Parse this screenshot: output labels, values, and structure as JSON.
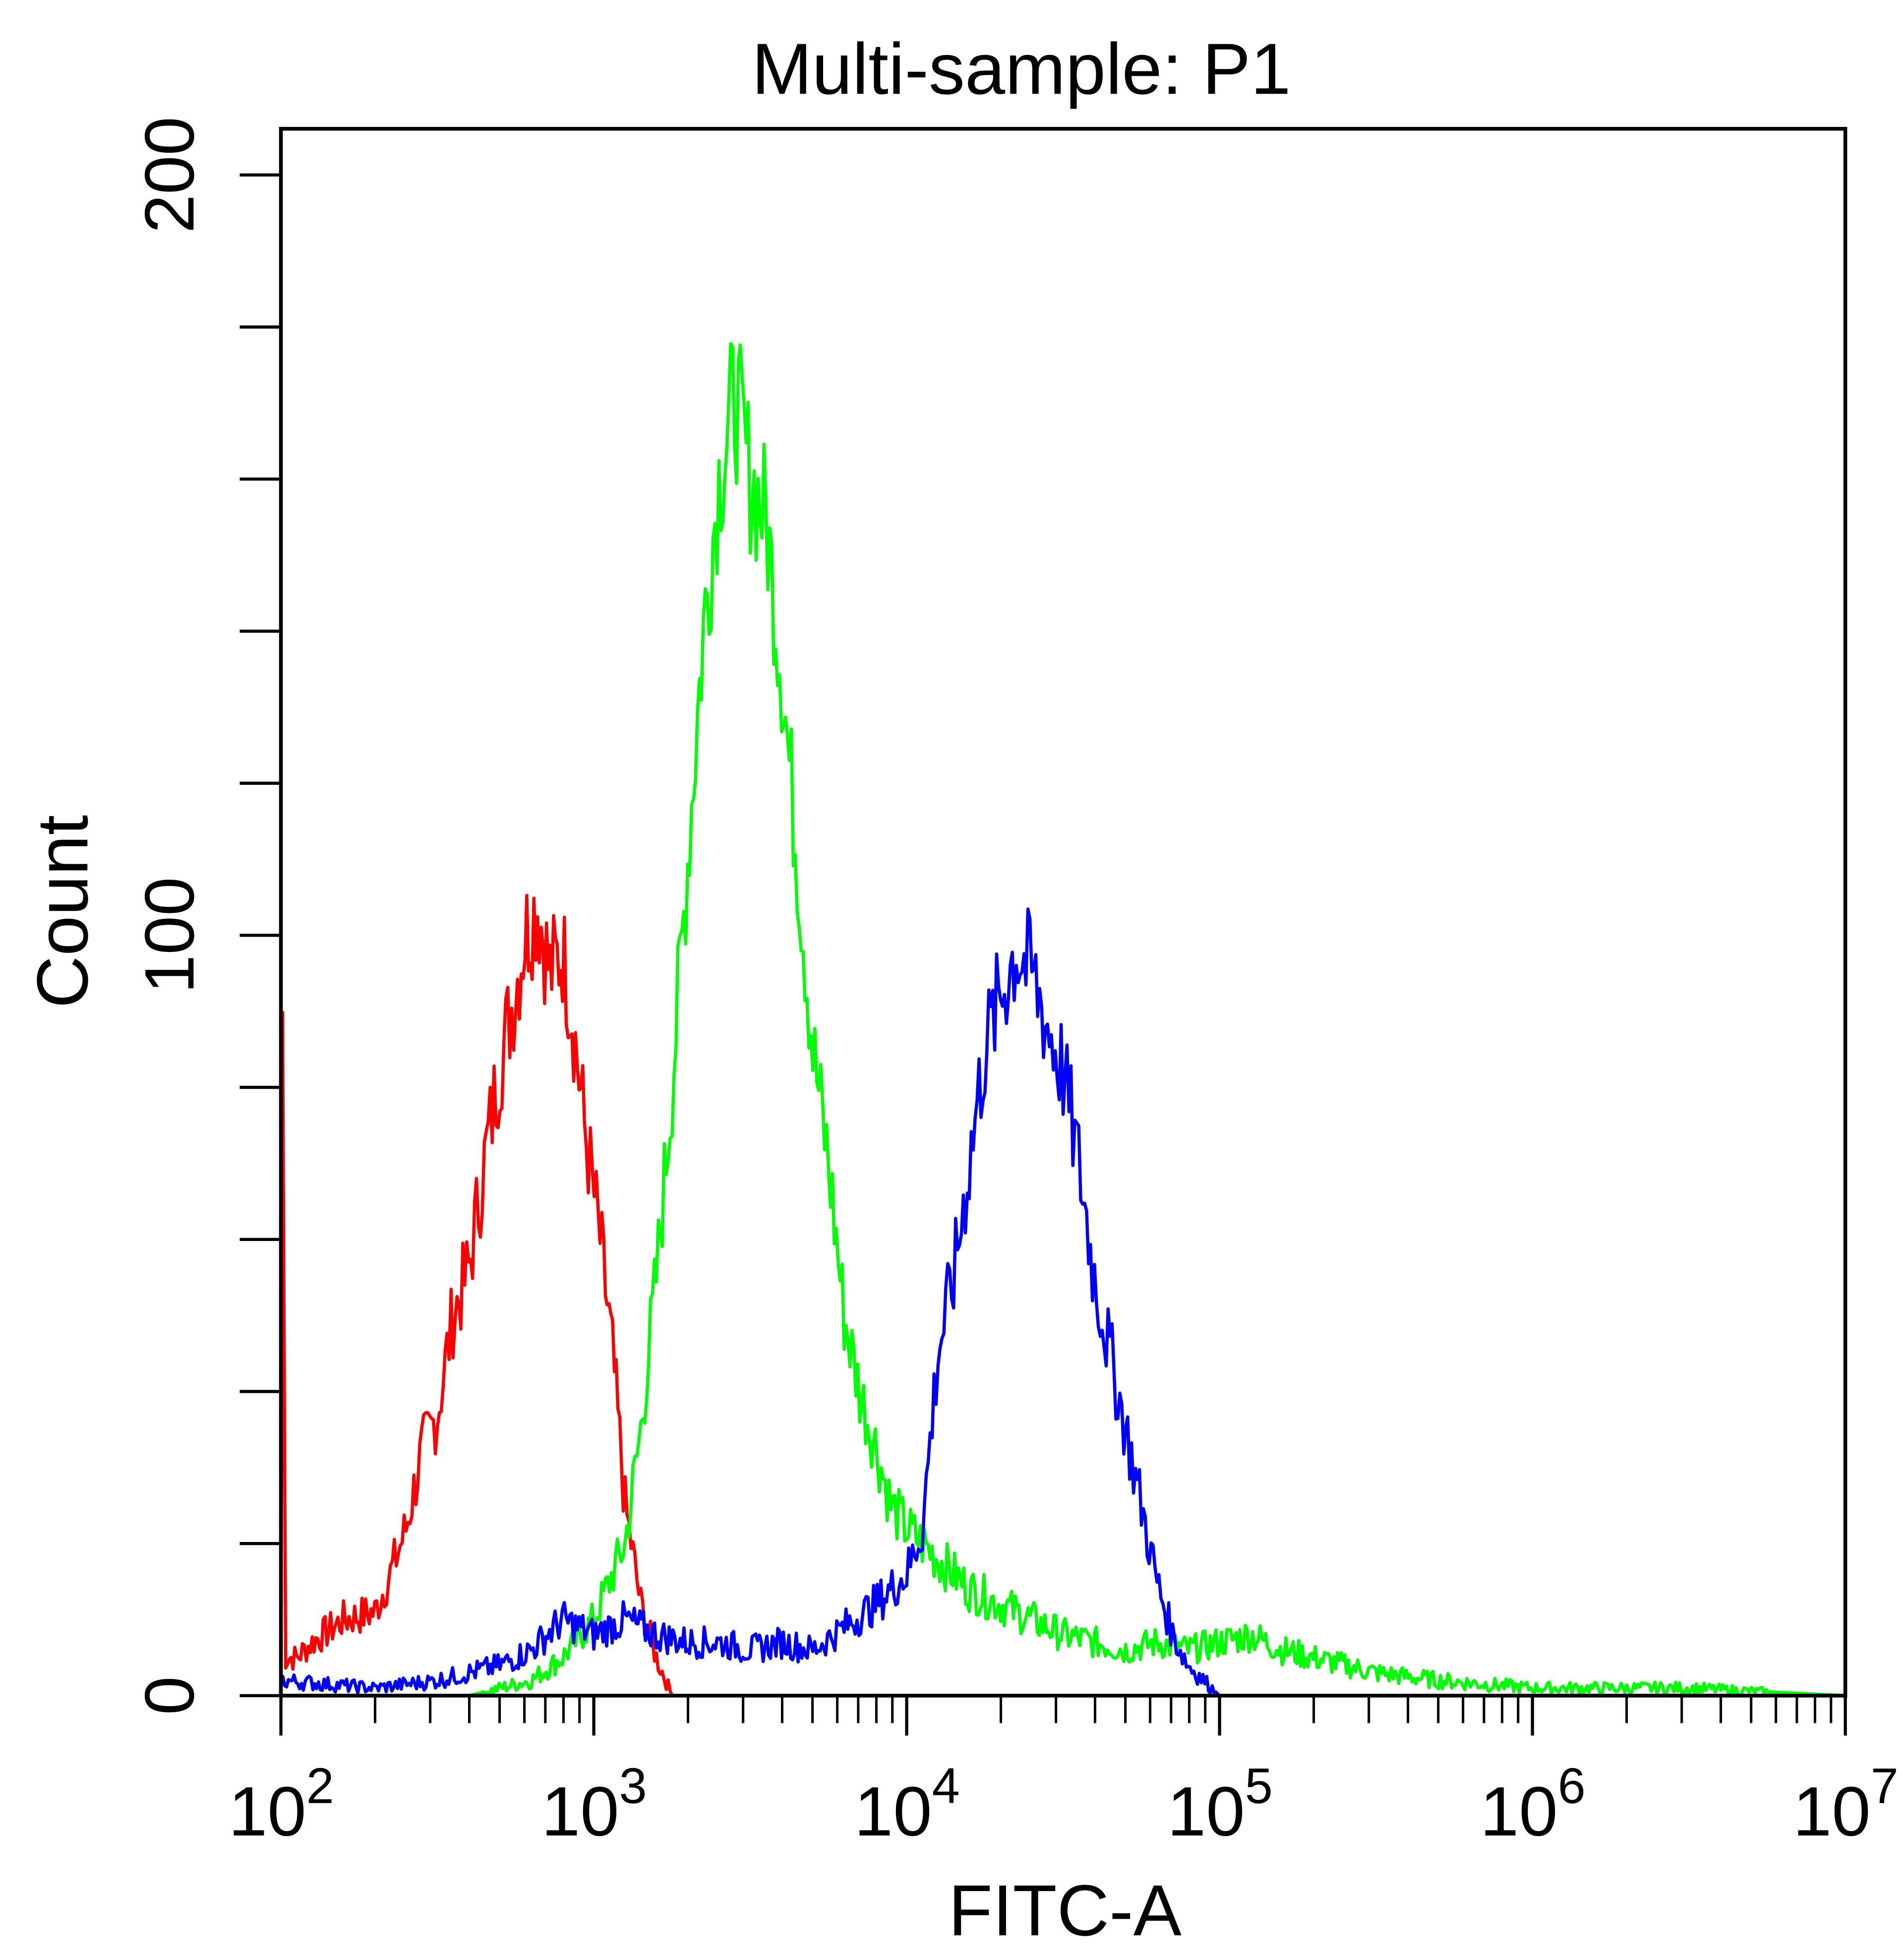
{
  "chart_data": {
    "type": "line",
    "title": "Multi-sample: P1",
    "xlabel": "FITC-A",
    "ylabel": "Count",
    "xscale": "log",
    "xlim_log10": [
      2,
      7
    ],
    "ylim": [
      0,
      206
    ],
    "x_tick_labels": [
      {
        "base": "10",
        "exp": "2"
      },
      {
        "base": "10",
        "exp": "3"
      },
      {
        "base": "10",
        "exp": "4"
      },
      {
        "base": "10",
        "exp": "5"
      },
      {
        "base": "10",
        "exp": "6"
      },
      {
        "base": "10",
        "exp": "7"
      }
    ],
    "y_ticks": [
      0,
      20,
      40,
      60,
      80,
      100,
      120,
      140,
      160,
      180,
      200
    ],
    "y_tick_labels": [
      "0",
      "100",
      "200"
    ],
    "grid": false,
    "series": [
      {
        "name": "red",
        "color": "#ff0000",
        "points_log10x_count": [
          [
            2.0,
            0
          ],
          [
            2.005,
            90
          ],
          [
            2.015,
            5
          ],
          [
            2.05,
            5
          ],
          [
            2.1,
            7
          ],
          [
            2.2,
            10
          ],
          [
            2.3,
            11
          ],
          [
            2.35,
            16
          ],
          [
            2.4,
            22
          ],
          [
            2.45,
            32
          ],
          [
            2.5,
            37
          ],
          [
            2.55,
            50
          ],
          [
            2.6,
            56
          ],
          [
            2.65,
            70
          ],
          [
            2.7,
            83
          ],
          [
            2.75,
            93
          ],
          [
            2.78,
            100
          ],
          [
            2.82,
            104
          ],
          [
            2.86,
            95
          ],
          [
            2.9,
            98
          ],
          [
            2.93,
            90
          ],
          [
            2.97,
            75
          ],
          [
            3.02,
            60
          ],
          [
            3.06,
            45
          ],
          [
            3.1,
            25
          ],
          [
            3.15,
            12
          ],
          [
            3.2,
            5
          ],
          [
            3.25,
            0
          ],
          [
            3.5,
            0
          ]
        ]
      },
      {
        "name": "green",
        "color": "#00ff00",
        "points_log10x_count": [
          [
            2.6,
            0
          ],
          [
            2.8,
            2
          ],
          [
            2.9,
            5
          ],
          [
            3.0,
            10
          ],
          [
            3.05,
            15
          ],
          [
            3.1,
            20
          ],
          [
            3.15,
            35
          ],
          [
            3.2,
            55
          ],
          [
            3.25,
            80
          ],
          [
            3.3,
            110
          ],
          [
            3.35,
            140
          ],
          [
            3.4,
            160
          ],
          [
            3.45,
            171
          ],
          [
            3.48,
            165
          ],
          [
            3.5,
            160
          ],
          [
            3.55,
            155
          ],
          [
            3.6,
            135
          ],
          [
            3.65,
            110
          ],
          [
            3.7,
            85
          ],
          [
            3.75,
            70
          ],
          [
            3.8,
            50
          ],
          [
            3.85,
            40
          ],
          [
            3.9,
            33
          ],
          [
            3.95,
            25
          ],
          [
            4.0,
            22
          ],
          [
            4.05,
            20
          ],
          [
            4.1,
            18
          ],
          [
            4.2,
            14
          ],
          [
            4.3,
            12
          ],
          [
            4.4,
            10
          ],
          [
            4.5,
            8
          ],
          [
            4.6,
            7
          ],
          [
            4.7,
            6
          ],
          [
            4.8,
            7
          ],
          [
            4.9,
            6
          ],
          [
            5.0,
            7
          ],
          [
            5.1,
            8
          ],
          [
            5.2,
            6
          ],
          [
            5.3,
            5
          ],
          [
            5.4,
            4
          ],
          [
            5.5,
            3
          ],
          [
            5.7,
            2
          ],
          [
            6.0,
            1
          ],
          [
            6.5,
            1
          ],
          [
            7.0,
            0
          ]
        ]
      },
      {
        "name": "blue",
        "color": "#0000ff",
        "points_log10x_count": [
          [
            2.0,
            2
          ],
          [
            2.3,
            1
          ],
          [
            2.5,
            2
          ],
          [
            2.7,
            4
          ],
          [
            2.8,
            6
          ],
          [
            2.9,
            10
          ],
          [
            3.0,
            8
          ],
          [
            3.1,
            10
          ],
          [
            3.2,
            8
          ],
          [
            3.3,
            7
          ],
          [
            3.4,
            7
          ],
          [
            3.5,
            6
          ],
          [
            3.6,
            7
          ],
          [
            3.7,
            6
          ],
          [
            3.8,
            9
          ],
          [
            3.9,
            12
          ],
          [
            4.0,
            16
          ],
          [
            4.05,
            22
          ],
          [
            4.1,
            45
          ],
          [
            4.15,
            55
          ],
          [
            4.2,
            70
          ],
          [
            4.25,
            85
          ],
          [
            4.3,
            92
          ],
          [
            4.35,
            98
          ],
          [
            4.4,
            95
          ],
          [
            4.45,
            88
          ],
          [
            4.5,
            82
          ],
          [
            4.55,
            70
          ],
          [
            4.6,
            55
          ],
          [
            4.65,
            45
          ],
          [
            4.7,
            35
          ],
          [
            4.75,
            25
          ],
          [
            4.8,
            15
          ],
          [
            4.85,
            8
          ],
          [
            4.9,
            4
          ],
          [
            5.0,
            0
          ],
          [
            7.0,
            0
          ]
        ]
      }
    ]
  }
}
